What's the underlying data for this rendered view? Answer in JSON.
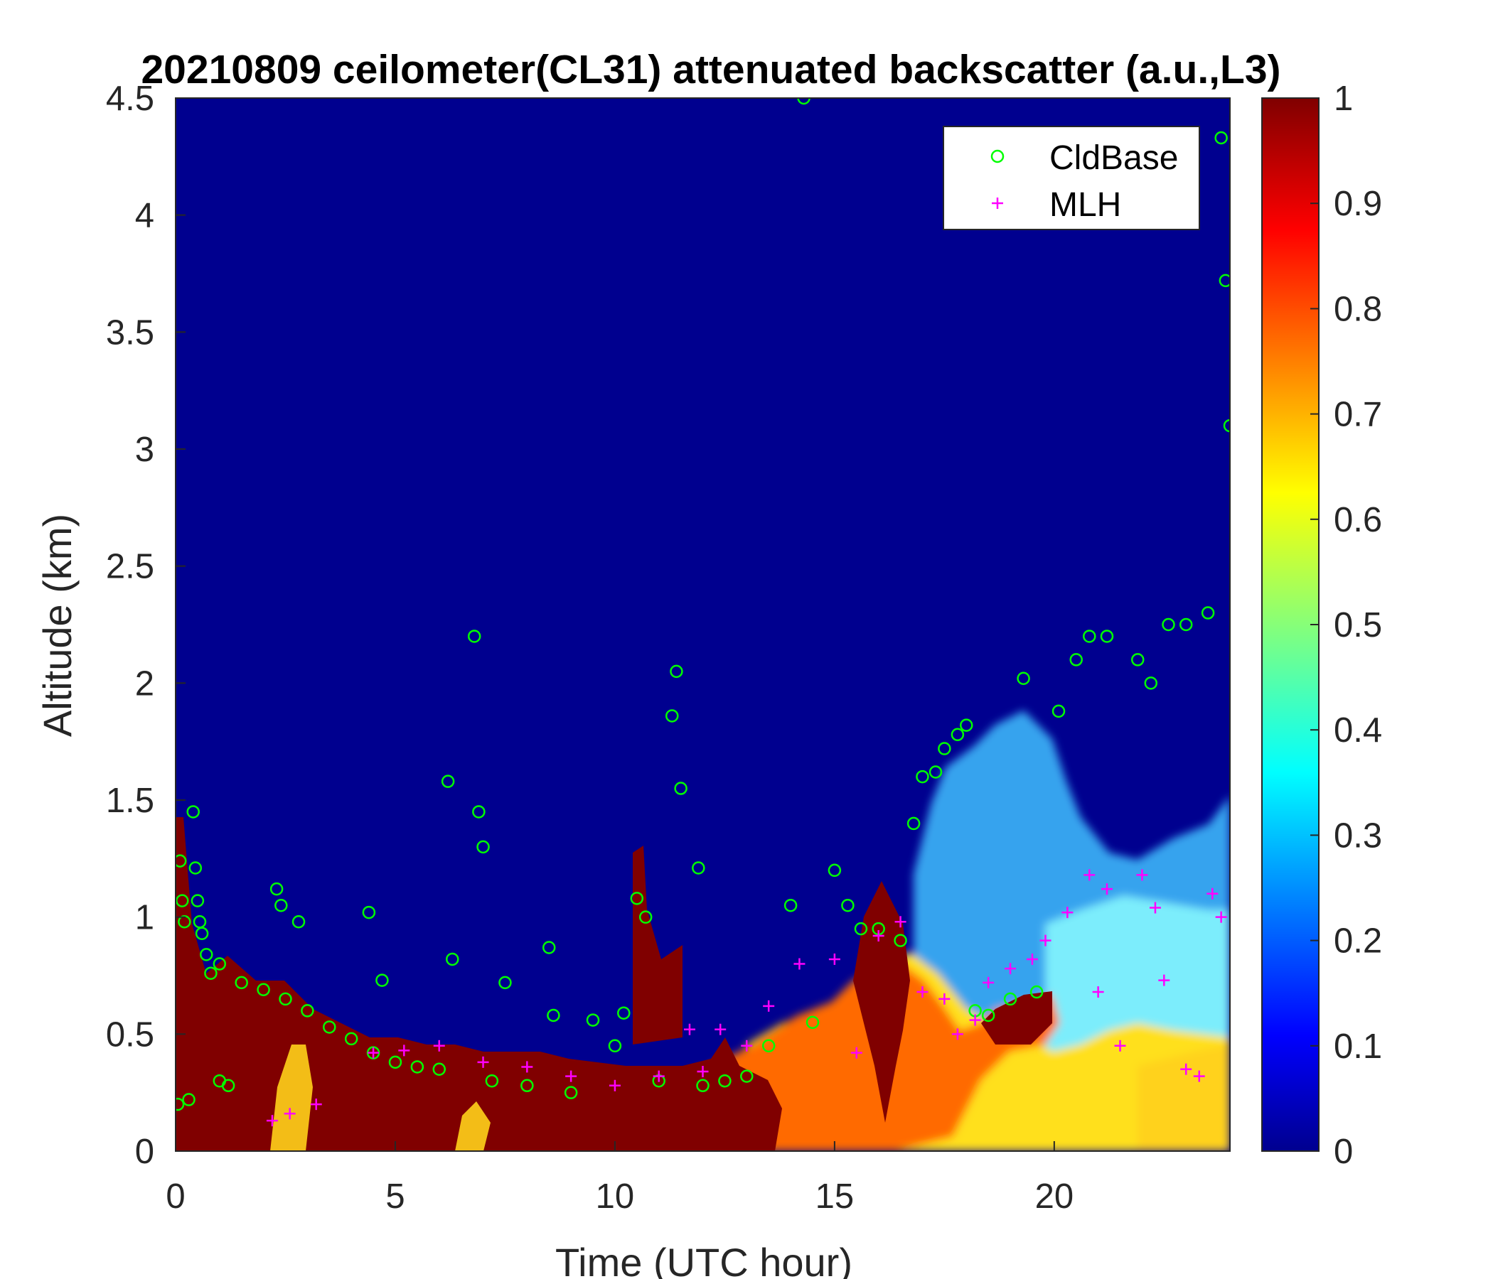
{
  "chart_data": {
    "type": "heatmap",
    "title": "20210809 ceilometer(CL31) attenuated backscatter (a.u.,L3)",
    "xlabel": "Time (UTC hour)",
    "ylabel": "Altitude (km)",
    "xlim": [
      0,
      24
    ],
    "ylim": [
      0,
      4.5
    ],
    "x_ticks": [
      "0",
      "5",
      "10",
      "15",
      "20"
    ],
    "y_ticks": [
      "0",
      "0.5",
      "1",
      "1.5",
      "2",
      "2.5",
      "3",
      "3.5",
      "4",
      "4.5"
    ],
    "colorbar": {
      "colormap": "jet",
      "range": [
        0,
        1
      ],
      "ticks": [
        "0",
        "0.1",
        "0.2",
        "0.3",
        "0.4",
        "0.5",
        "0.6",
        "0.7",
        "0.8",
        "0.9",
        "1"
      ]
    },
    "legend": {
      "position": "top-right",
      "entries": [
        {
          "label": "CldBase",
          "marker": "circle",
          "color": "#00ff00"
        },
        {
          "label": "MLH",
          "marker": "plus",
          "color": "#ff00ff"
        }
      ]
    },
    "cloud_base_km": [
      [
        0.05,
        0.2
      ],
      [
        0.1,
        1.24
      ],
      [
        0.15,
        1.07
      ],
      [
        0.2,
        0.98
      ],
      [
        0.3,
        0.22
      ],
      [
        0.4,
        1.45
      ],
      [
        0.45,
        1.21
      ],
      [
        0.5,
        1.07
      ],
      [
        0.55,
        0.98
      ],
      [
        0.6,
        0.93
      ],
      [
        0.7,
        0.84
      ],
      [
        0.8,
        0.76
      ],
      [
        1.0,
        0.8
      ],
      [
        1.0,
        0.3
      ],
      [
        1.2,
        0.28
      ],
      [
        1.5,
        0.72
      ],
      [
        2.0,
        0.69
      ],
      [
        2.3,
        1.12
      ],
      [
        2.4,
        1.05
      ],
      [
        2.5,
        0.65
      ],
      [
        2.8,
        0.98
      ],
      [
        3.0,
        0.6
      ],
      [
        3.5,
        0.53
      ],
      [
        4.0,
        0.48
      ],
      [
        4.4,
        1.02
      ],
      [
        4.5,
        0.42
      ],
      [
        4.7,
        0.73
      ],
      [
        5.0,
        0.38
      ],
      [
        5.5,
        0.36
      ],
      [
        6.0,
        0.35
      ],
      [
        6.2,
        1.58
      ],
      [
        6.3,
        0.82
      ],
      [
        6.8,
        2.2
      ],
      [
        6.9,
        1.45
      ],
      [
        7.0,
        1.3
      ],
      [
        7.2,
        0.3
      ],
      [
        7.5,
        0.72
      ],
      [
        8.0,
        0.28
      ],
      [
        8.5,
        0.87
      ],
      [
        8.6,
        0.58
      ],
      [
        9.0,
        0.25
      ],
      [
        9.5,
        0.56
      ],
      [
        10.0,
        0.45
      ],
      [
        10.2,
        0.59
      ],
      [
        10.5,
        1.08
      ],
      [
        10.7,
        1.0
      ],
      [
        11.0,
        0.3
      ],
      [
        11.3,
        1.86
      ],
      [
        11.4,
        2.05
      ],
      [
        11.5,
        1.55
      ],
      [
        11.9,
        1.21
      ],
      [
        12.0,
        0.28
      ],
      [
        12.5,
        0.3
      ],
      [
        13.0,
        0.32
      ],
      [
        13.5,
        0.45
      ],
      [
        14.0,
        1.05
      ],
      [
        14.3,
        4.5
      ],
      [
        14.5,
        0.55
      ],
      [
        15.0,
        1.2
      ],
      [
        15.3,
        1.05
      ],
      [
        15.6,
        0.95
      ],
      [
        16.0,
        0.95
      ],
      [
        16.5,
        0.9
      ],
      [
        16.8,
        1.4
      ],
      [
        17.0,
        1.6
      ],
      [
        17.3,
        1.62
      ],
      [
        17.5,
        1.72
      ],
      [
        17.8,
        1.78
      ],
      [
        18.0,
        1.82
      ],
      [
        18.2,
        0.6
      ],
      [
        18.5,
        0.58
      ],
      [
        19.0,
        0.65
      ],
      [
        19.3,
        2.02
      ],
      [
        19.6,
        0.68
      ],
      [
        20.1,
        1.88
      ],
      [
        20.5,
        2.1
      ],
      [
        20.8,
        2.2
      ],
      [
        21.2,
        2.2
      ],
      [
        21.9,
        2.1
      ],
      [
        22.2,
        2.0
      ],
      [
        22.6,
        2.25
      ],
      [
        23.0,
        2.25
      ],
      [
        23.5,
        2.3
      ],
      [
        23.8,
        4.33
      ],
      [
        23.9,
        3.72
      ],
      [
        24.0,
        3.1
      ]
    ],
    "mlh_km": [
      [
        2.2,
        0.13
      ],
      [
        2.6,
        0.16
      ],
      [
        3.2,
        0.2
      ],
      [
        4.5,
        0.42
      ],
      [
        5.2,
        0.43
      ],
      [
        6.0,
        0.45
      ],
      [
        7.0,
        0.38
      ],
      [
        8.0,
        0.36
      ],
      [
        9.0,
        0.32
      ],
      [
        10.0,
        0.28
      ],
      [
        11.0,
        0.32
      ],
      [
        12.0,
        0.34
      ],
      [
        11.7,
        0.52
      ],
      [
        12.4,
        0.52
      ],
      [
        13.0,
        0.45
      ],
      [
        13.5,
        0.62
      ],
      [
        14.2,
        0.8
      ],
      [
        15.0,
        0.82
      ],
      [
        15.5,
        0.42
      ],
      [
        16.0,
        0.92
      ],
      [
        16.5,
        0.98
      ],
      [
        17.0,
        0.68
      ],
      [
        17.5,
        0.65
      ],
      [
        17.8,
        0.5
      ],
      [
        18.2,
        0.56
      ],
      [
        18.5,
        0.72
      ],
      [
        19.0,
        0.78
      ],
      [
        19.5,
        0.82
      ],
      [
        19.8,
        0.9
      ],
      [
        20.3,
        1.02
      ],
      [
        20.8,
        1.18
      ],
      [
        21.0,
        0.68
      ],
      [
        21.2,
        1.12
      ],
      [
        21.5,
        0.45
      ],
      [
        22.0,
        1.18
      ],
      [
        22.3,
        1.04
      ],
      [
        22.5,
        0.73
      ],
      [
        23.0,
        0.35
      ],
      [
        23.3,
        0.32
      ],
      [
        23.6,
        1.1
      ],
      [
        23.8,
        1.0
      ]
    ]
  }
}
